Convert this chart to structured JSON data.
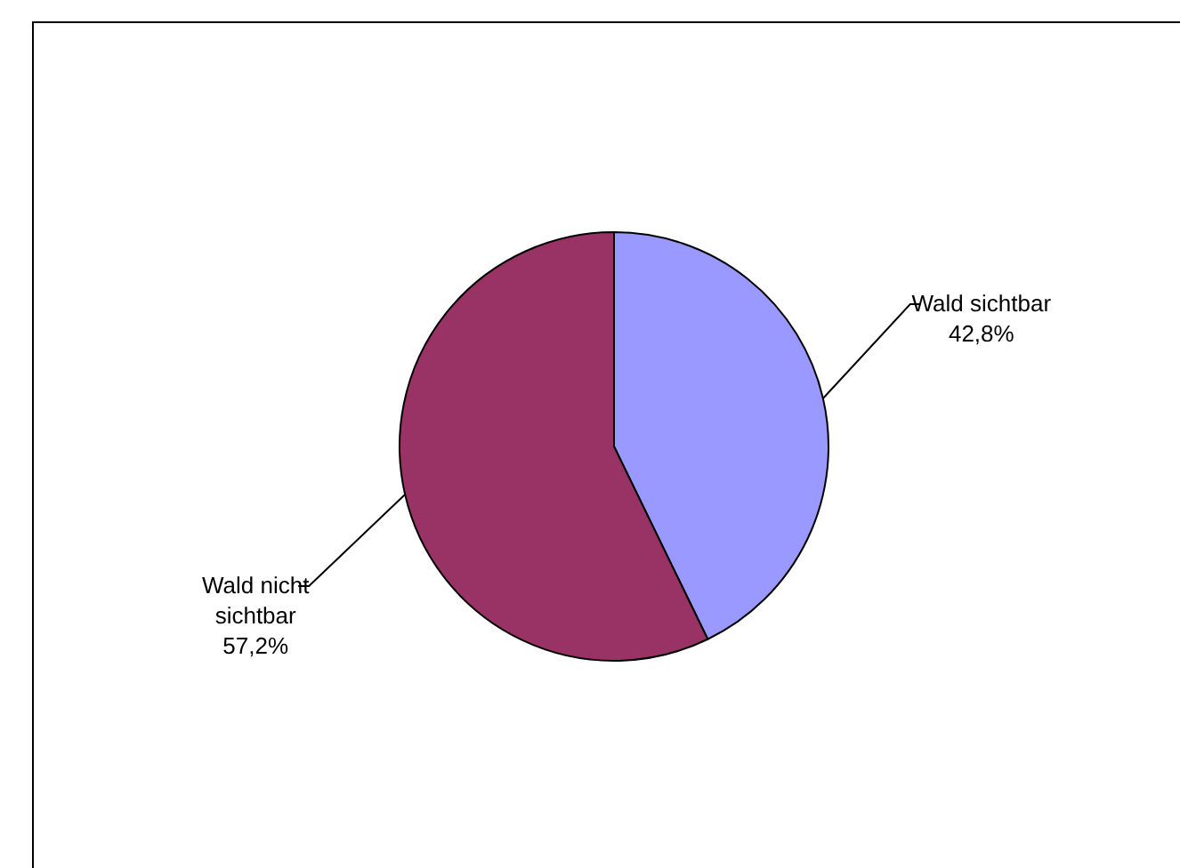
{
  "chart_data": {
    "type": "pie",
    "categories": [
      "Wald sichtbar",
      "Wald nicht sichtbar"
    ],
    "values": [
      42.8,
      57.2
    ],
    "colors": [
      "#9999ff",
      "#993366"
    ],
    "value_labels": [
      "42,8%",
      "57,2%"
    ],
    "legend": false
  }
}
